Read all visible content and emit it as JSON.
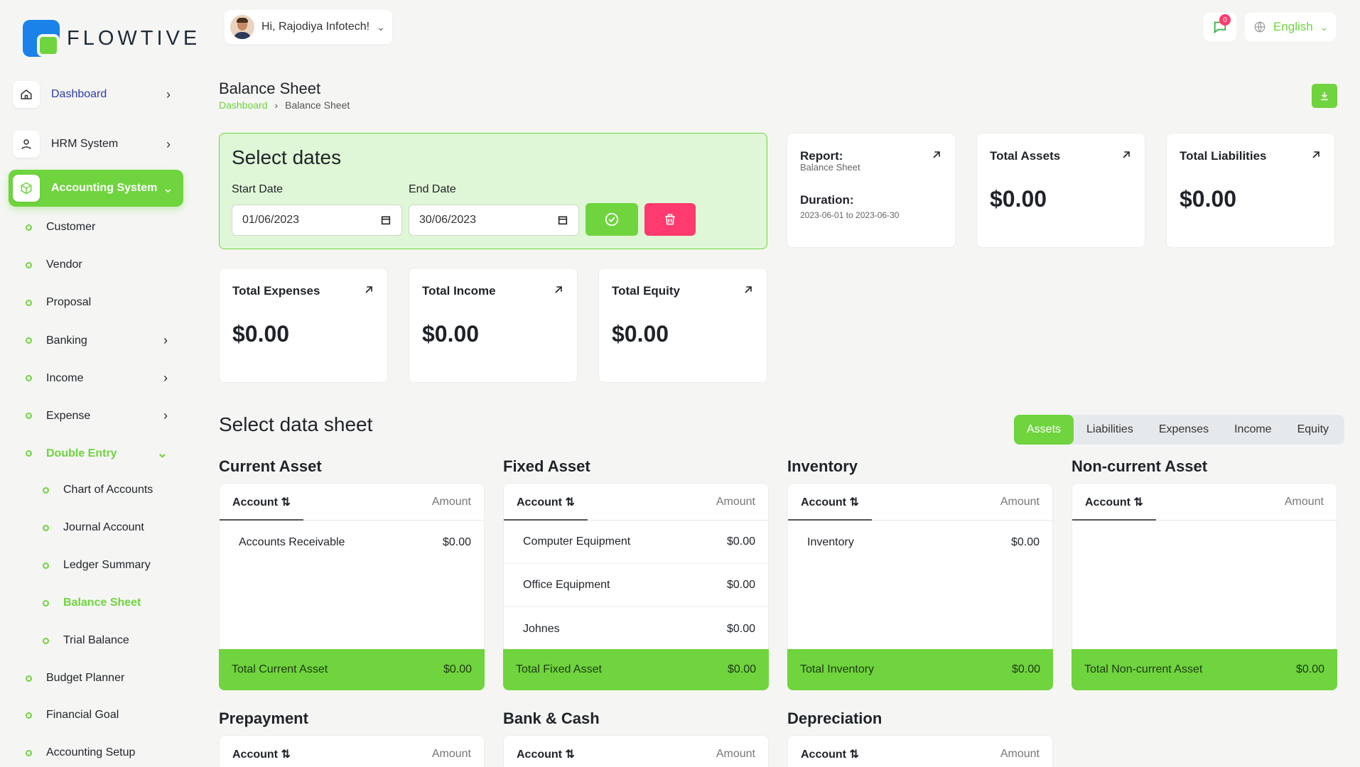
{
  "brand": {
    "name": "FLOWTIVE"
  },
  "sidebar": {
    "top": [
      {
        "label": "Dashboard"
      },
      {
        "label": "HRM System"
      },
      {
        "label": "Accounting System"
      }
    ],
    "accounting": [
      {
        "label": "Customer"
      },
      {
        "label": "Vendor"
      },
      {
        "label": "Proposal"
      },
      {
        "label": "Banking"
      },
      {
        "label": "Income"
      },
      {
        "label": "Expense"
      },
      {
        "label": "Double Entry"
      }
    ],
    "double_entry": [
      {
        "label": "Chart of Accounts"
      },
      {
        "label": "Journal Account"
      },
      {
        "label": "Ledger Summary"
      },
      {
        "label": "Balance Sheet"
      },
      {
        "label": "Trial Balance"
      }
    ],
    "bottom": [
      {
        "label": "Budget Planner"
      },
      {
        "label": "Financial Goal"
      },
      {
        "label": "Accounting Setup"
      }
    ]
  },
  "header": {
    "greeting": "Hi, Rajodiya Infotech!",
    "notification_count": "0",
    "language": "English"
  },
  "page": {
    "title": "Balance Sheet",
    "breadcrumb": [
      "Dashboard",
      "Balance Sheet"
    ]
  },
  "dates": {
    "heading": "Select dates",
    "start_label": "Start Date",
    "start_value": "01/06/2023",
    "end_label": "End Date",
    "end_value": "30/06/2023"
  },
  "report": {
    "label": "Report:",
    "name": "Balance Sheet",
    "duration_label": "Duration:",
    "duration": "2023-06-01 to 2023-06-30"
  },
  "stats": [
    {
      "title": "Total Assets",
      "value": "$0.00"
    },
    {
      "title": "Total Liabilities",
      "value": "$0.00"
    },
    {
      "title": "Total Expenses",
      "value": "$0.00"
    },
    {
      "title": "Total Income",
      "value": "$0.00"
    },
    {
      "title": "Total Equity",
      "value": "$0.00"
    }
  ],
  "datasheet": {
    "title": "Select data sheet",
    "tabs": [
      "Assets",
      "Liabilities",
      "Expenses",
      "Income",
      "Equity"
    ],
    "col_account": "Account ⇅",
    "col_amount": "Amount"
  },
  "sections": [
    {
      "title": "Current Asset",
      "rows": [
        {
          "account": "Accounts Receivable",
          "amount": "$0.00"
        }
      ],
      "total_label": "Total Current Asset",
      "total": "$0.00"
    },
    {
      "title": "Fixed Asset",
      "rows": [
        {
          "account": "Computer Equipment",
          "amount": "$0.00"
        },
        {
          "account": "Office Equipment",
          "amount": "$0.00"
        },
        {
          "account": "Johnes",
          "amount": "$0.00"
        }
      ],
      "total_label": "Total Fixed Asset",
      "total": "$0.00"
    },
    {
      "title": "Inventory",
      "rows": [
        {
          "account": "Inventory",
          "amount": "$0.00"
        }
      ],
      "total_label": "Total Inventory",
      "total": "$0.00"
    },
    {
      "title": "Non-current Asset",
      "rows": [],
      "total_label": "Total Non-current Asset",
      "total": "$0.00"
    },
    {
      "title": "Prepayment"
    },
    {
      "title": "Bank & Cash"
    },
    {
      "title": "Depreciation"
    }
  ]
}
